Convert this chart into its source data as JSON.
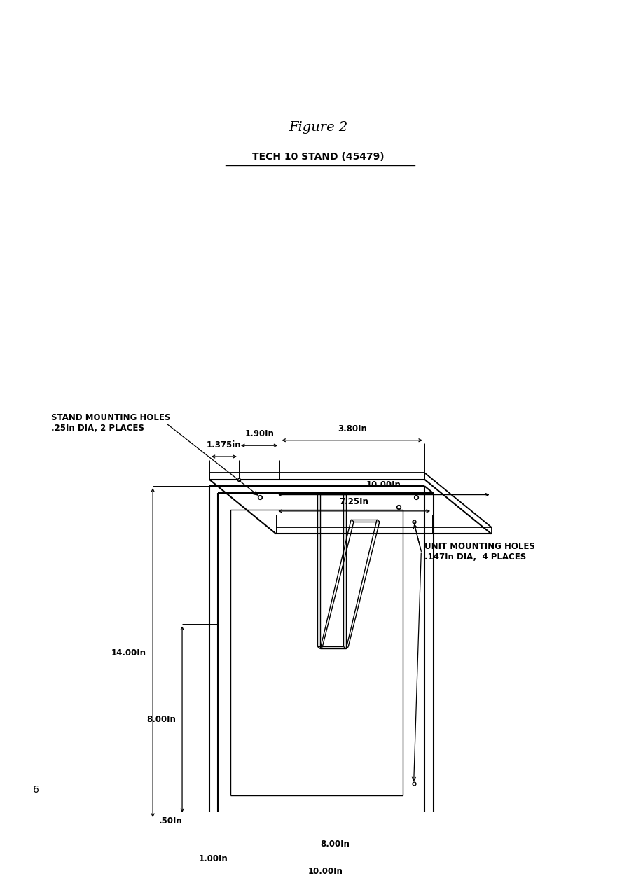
{
  "title": "Figure 2",
  "subtitle": "TECH 10 STAND (45479)",
  "page_number": "6",
  "bg_color": "#ffffff",
  "line_color": "#000000",
  "annotations": {
    "10_00in_top": "10.00In",
    "8_00in_horiz": "8.00In",
    "1_00in": "1.00In",
    "0_50in": ".50In",
    "8_00in_vert": "8.00In",
    "14_00in": "14.00In",
    "unit_mounting_1": "UNIT MOUNTING HOLES",
    "unit_mounting_2": ".147In DIA,  4 PLACES",
    "stand_mounting_1": "STAND MOUNTING HOLES",
    "stand_mounting_2": ".25In DIA, 2 PLACES",
    "7_25in": "7.25In",
    "10_00in_bot": "10.00In",
    "1_375in": "1.375in",
    "1_90in": "1.90In",
    "3_80in": "3.80In"
  }
}
